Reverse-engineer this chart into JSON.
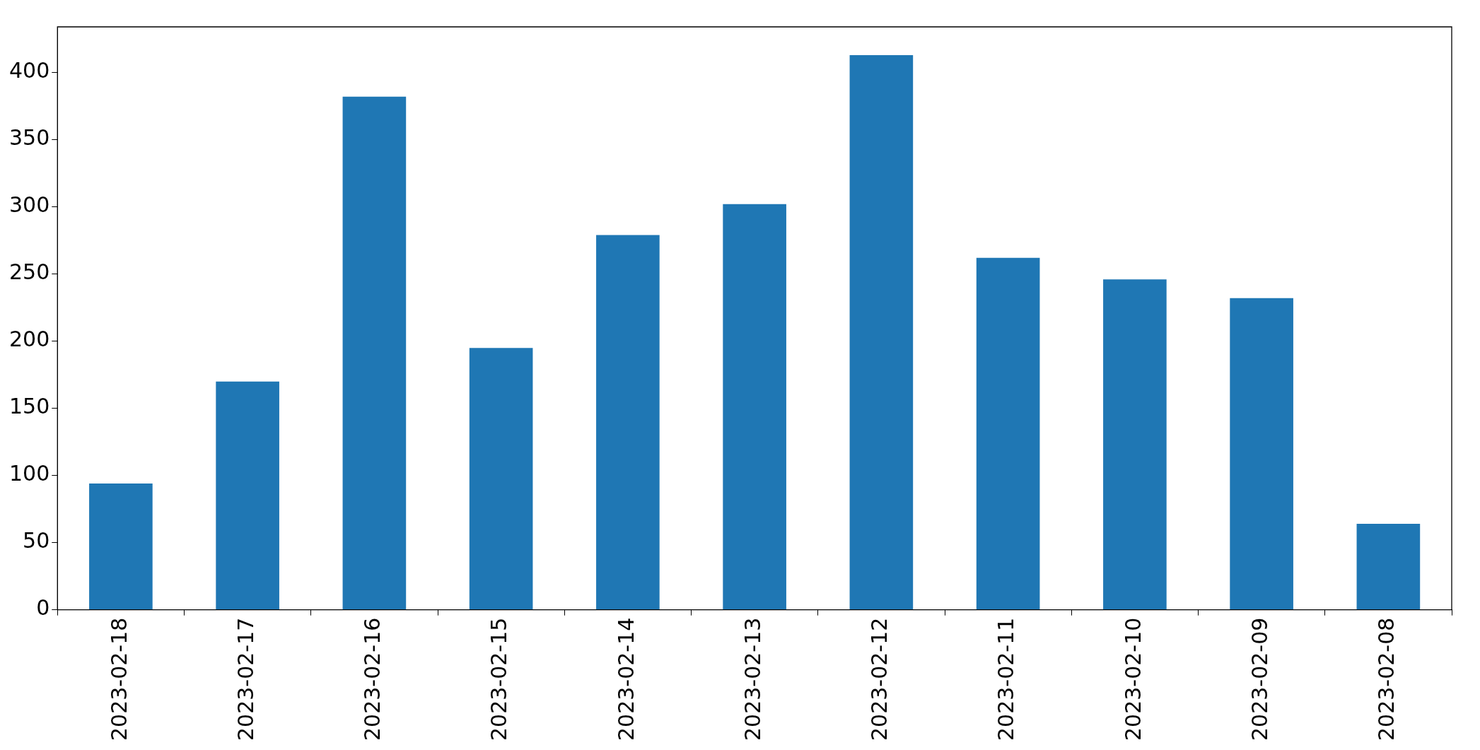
{
  "chart_data": {
    "type": "bar",
    "categories": [
      "2023-02-18",
      "2023-02-17",
      "2023-02-16",
      "2023-02-15",
      "2023-02-14",
      "2023-02-13",
      "2023-02-12",
      "2023-02-11",
      "2023-02-10",
      "2023-02-09",
      "2023-02-08"
    ],
    "values": [
      94,
      170,
      382,
      195,
      279,
      302,
      413,
      262,
      246,
      232,
      64
    ],
    "color": "#1f77b4",
    "ylim": [
      0,
      434
    ],
    "yticks": [
      0,
      50,
      100,
      150,
      200,
      250,
      300,
      350,
      400
    ],
    "grid": false,
    "legend": false
  }
}
